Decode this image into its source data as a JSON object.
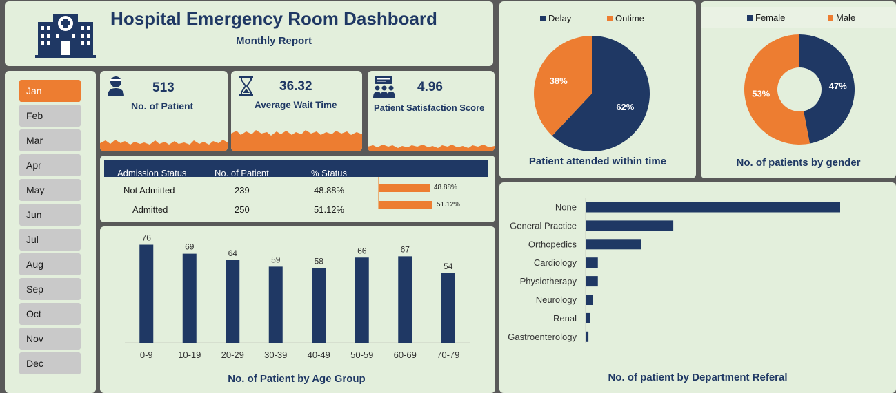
{
  "header": {
    "title": "Hospital Emergency Room Dashboard",
    "subtitle": "Monthly Report",
    "logo_icon": "hospital-icon"
  },
  "months": {
    "items": [
      "Jan",
      "Feb",
      "Mar",
      "Apr",
      "May",
      "Jun",
      "Jul",
      "Aug",
      "Sep",
      "Oct",
      "Nov",
      "Dec"
    ],
    "selected": "Jan"
  },
  "kpis": {
    "patients": {
      "value": "513",
      "label": "No. of Patient",
      "icon": "patient-icon"
    },
    "wait_time": {
      "value": "36.32",
      "label": "Average Wait Time",
      "icon": "hourglass-icon"
    },
    "satisfaction": {
      "value": "4.96",
      "label": "Patient Satisfaction Score",
      "icon": "group-feedback-icon"
    }
  },
  "admission": {
    "headers": [
      "Admission Status",
      "No. of Patient",
      "% Status"
    ],
    "rows": [
      {
        "status": "Not Admitted",
        "count": "239",
        "percent": "48.88%",
        "fraction": 0.4888
      },
      {
        "status": "Admitted",
        "count": "250",
        "percent": "51.12%",
        "fraction": 0.5112
      }
    ]
  },
  "colors": {
    "navy": "#1f3864",
    "orange": "#ed7d31",
    "panel": "#e3efdc",
    "background": "#595959"
  },
  "chart_data": [
    {
      "type": "bar",
      "title": "No. of Patient by Age  Group",
      "categories": [
        "0-9",
        "10-19",
        "20-29",
        "30-39",
        "40-49",
        "50-59",
        "60-69",
        "70-79"
      ],
      "values": [
        76,
        69,
        64,
        59,
        58,
        66,
        67,
        54
      ],
      "ylim": [
        0,
        80
      ],
      "grid": false
    },
    {
      "type": "bar",
      "orientation": "horizontal",
      "title": "No. of patient by Department Referal",
      "categories": [
        "None",
        "General Practice",
        "Orthopedics",
        "Cardiology",
        "Physiotherapy",
        "Neurology",
        "Renal",
        "Gastroenterology"
      ],
      "values": [
        270,
        93,
        59,
        13,
        13,
        8,
        5,
        3
      ],
      "xlim": [
        0,
        300
      ],
      "grid": false
    },
    {
      "type": "pie",
      "title": "Patient attended within time",
      "labels": [
        "Delay",
        "Ontime"
      ],
      "values": [
        62,
        38
      ],
      "data_labels": [
        "62%",
        "38%"
      ],
      "legend": "top"
    },
    {
      "type": "pie",
      "subtype": "donut",
      "title": "No. of patients by gender",
      "labels": [
        "Female",
        "Male"
      ],
      "values": [
        47,
        53
      ],
      "data_labels": [
        "47%",
        "53%"
      ],
      "legend": "top"
    }
  ]
}
